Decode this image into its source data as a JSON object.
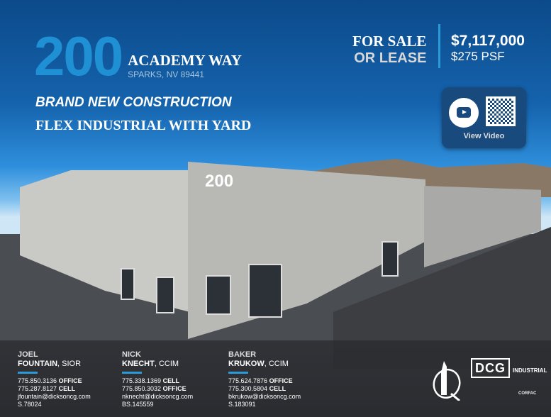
{
  "property": {
    "number": "200",
    "street": "ACADEMY WAY",
    "city": "SPARKS, NV 89441",
    "headline1": "BRAND NEW CONSTRUCTION",
    "headline2": "FLEX INDUSTRIAL WITH YARD",
    "building_number": "200"
  },
  "offer": {
    "line1": "FOR SALE",
    "line2": "OR LEASE",
    "price": "$7,117,000",
    "psf": "$275 PSF"
  },
  "video": {
    "label": "View Video",
    "icons": [
      "youtube-icon",
      "qr-code"
    ]
  },
  "agents": [
    {
      "first": "JOEL",
      "last": "FOUNTAIN",
      "title": ", SIOR",
      "phone1": "775.850.3136",
      "type1": "OFFICE",
      "phone2": "775.287.8127",
      "type2": "CELL",
      "email": "jfountain@dicksoncg.com",
      "license": "S.78024"
    },
    {
      "first": "NICK",
      "last": "KNECHT",
      "title": ", CCIM",
      "phone1": "775.338.1369",
      "type1": "CELL",
      "phone2": "775.850.3032",
      "type2": "OFFICE",
      "email": "nknecht@dicksoncg.com",
      "license": "BS.145559"
    },
    {
      "first": "BAKER",
      "last": "KRUKOW",
      "title": ", CCIM",
      "phone1": "775.624.7876",
      "type1": "OFFICE",
      "phone2": "775.300.5804",
      "type2": "CELL",
      "email": "bkrukow@dicksoncg.com",
      "license": "S.183091"
    }
  ],
  "logos": {
    "dcg": "DCG",
    "dcg_sub": "INDUSTRIAL",
    "corfac": "CORFAC"
  },
  "colors": {
    "accent": "#2a9ad8",
    "big_number": "#2090d4",
    "video_bg": "#184a7e"
  }
}
